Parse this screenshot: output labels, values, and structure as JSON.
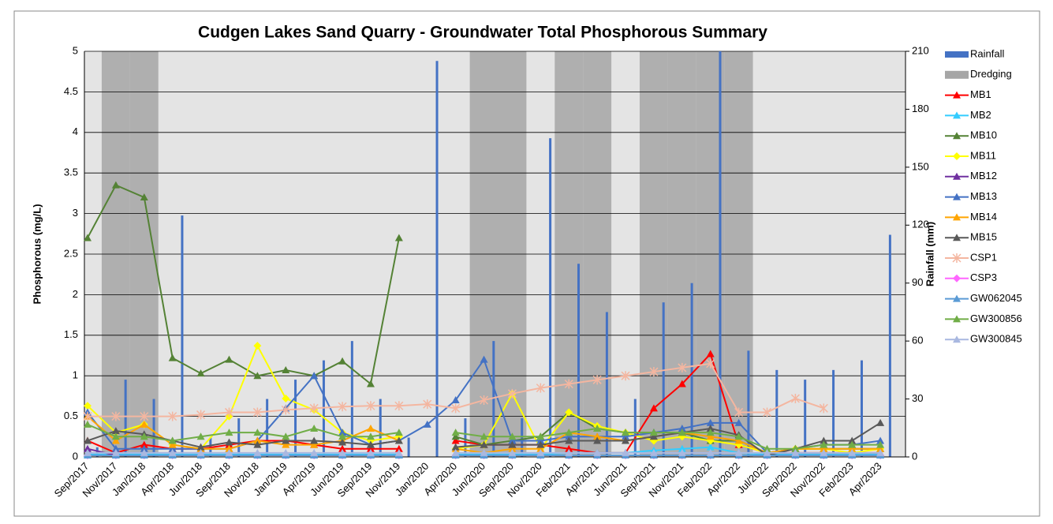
{
  "chart_data": {
    "type": "line",
    "title": "Cudgen Lakes Sand Quarry - Groundwater Total Phosphorous Summary",
    "y_label": "Phosphorous (mg/L)",
    "y2_label": "Rainfall (mm)",
    "categories": [
      "Sep/2017",
      "Nov/2017",
      "Jan/2018",
      "Apr/2018",
      "Jun/2018",
      "Sep/2018",
      "Nov/2018",
      "Jan/2019",
      "Apr/2019",
      "Jun/2019",
      "Sep/2019",
      "Nov/2019",
      "Jan/2020",
      "Apr/2020",
      "Jun/2020",
      "Sep/2020",
      "Nov/2020",
      "Feb/2021",
      "Apr/2021",
      "Jun/2021",
      "Sep/2021",
      "Nov/2021",
      "Feb/2022",
      "Apr/2022",
      "Jul/2022",
      "Sep/2022",
      "Nov/2022",
      "Feb/2023",
      "Apr/2023"
    ],
    "ylim": [
      0,
      5
    ],
    "yticks": [
      0,
      0.5,
      1,
      1.5,
      2,
      2.5,
      3,
      3.5,
      4,
      4.5,
      5
    ],
    "y2lim": [
      0,
      210
    ],
    "y2ticks": [
      0,
      30,
      60,
      90,
      120,
      150,
      180,
      210
    ],
    "grid": true,
    "legend": "right",
    "series": [
      {
        "name": "Rainfall",
        "type": "bar",
        "axis": "y2",
        "color": "#4472c4",
        "values": [
          5,
          40,
          30,
          125,
          10,
          20,
          30,
          40,
          50,
          60,
          30,
          10,
          205,
          20,
          60,
          20,
          165,
          100,
          75,
          30,
          80,
          90,
          210,
          55,
          45,
          40,
          45,
          50,
          115
        ]
      },
      {
        "name": "Dredging",
        "type": "band",
        "axis": "y2",
        "color": "#a6a6a6",
        "values": [
          null,
          210,
          210,
          null,
          null,
          null,
          null,
          null,
          null,
          null,
          null,
          null,
          null,
          null,
          210,
          210,
          null,
          210,
          210,
          null,
          210,
          210,
          210,
          210,
          null,
          null,
          null,
          null,
          null
        ]
      },
      {
        "name": "MB1",
        "type": "line",
        "color": "#ff0000",
        "marker": "triangle",
        "values": [
          0.2,
          0.05,
          0.15,
          0.1,
          0.1,
          0.15,
          0.2,
          0.2,
          0.15,
          0.1,
          0.1,
          0.1,
          null,
          0.2,
          0.15,
          0.15,
          0.15,
          0.1,
          0.05,
          0.05,
          0.6,
          0.9,
          1.27,
          0.15,
          0.05,
          0.05,
          0.05,
          0.05,
          0.05
        ]
      },
      {
        "name": "MB2",
        "type": "line",
        "color": "#33ccff",
        "marker": "triangle",
        "values": [
          0.03,
          0.03,
          0.03,
          0.03,
          0.03,
          0.03,
          0.03,
          0.03,
          0.03,
          0.03,
          0.03,
          0.03,
          null,
          0.03,
          0.03,
          0.03,
          0.03,
          0.05,
          0.05,
          0.05,
          0.08,
          0.1,
          0.12,
          0.05,
          0.03,
          0.03,
          0.03,
          0.03,
          0.03
        ]
      },
      {
        "name": "MB10",
        "type": "line",
        "color": "#548235",
        "marker": "triangle",
        "values": [
          2.7,
          3.35,
          3.2,
          1.22,
          1.03,
          1.2,
          1.0,
          1.07,
          1.0,
          1.18,
          0.9,
          2.7,
          null,
          0.25,
          0.15,
          0.2,
          0.25,
          0.55,
          0.35,
          0.3,
          0.3,
          0.3,
          0.2,
          0.2,
          0.05,
          0.1,
          0.1,
          0.1,
          0.1
        ]
      },
      {
        "name": "MB11",
        "type": "line",
        "color": "#ffff00",
        "marker": "diamond",
        "values": [
          0.63,
          0.3,
          0.4,
          0.15,
          0.1,
          0.5,
          1.37,
          0.72,
          0.58,
          0.3,
          0.2,
          0.25,
          null,
          0.1,
          0.15,
          0.78,
          0.1,
          0.55,
          0.38,
          0.3,
          0.2,
          0.25,
          0.2,
          0.15,
          0.05,
          0.1,
          0.1,
          0.05,
          0.1
        ]
      },
      {
        "name": "MB12",
        "type": "line",
        "color": "#7030a0",
        "marker": "triangle",
        "values": [
          0.1,
          0.02,
          0.02,
          0.02,
          0.02,
          0.02,
          0.02,
          0.02,
          0.02,
          0.02,
          0.02,
          0.02,
          null,
          0.02,
          0.02,
          0.02,
          0.02,
          0.02,
          0.02,
          0.02,
          0.02,
          0.02,
          0.02,
          0.02,
          0.02,
          0.02,
          0.02,
          0.02,
          0.02
        ]
      },
      {
        "name": "MB13",
        "type": "line",
        "color": "#4472c4",
        "marker": "triangle",
        "values": [
          0.55,
          0.1,
          0.1,
          0.1,
          0.1,
          0.1,
          0.2,
          0.6,
          1.0,
          0.3,
          0.15,
          0.2,
          0.4,
          0.7,
          1.2,
          0.2,
          0.2,
          0.25,
          0.25,
          0.25,
          0.3,
          0.35,
          0.42,
          0.42,
          0.05,
          0.1,
          0.15,
          0.15,
          0.2
        ]
      },
      {
        "name": "MB14",
        "type": "line",
        "color": "#ffa500",
        "marker": "triangle",
        "values": [
          0.5,
          0.2,
          0.4,
          0.15,
          0.1,
          0.1,
          0.2,
          0.15,
          0.15,
          0.2,
          0.35,
          0.2,
          null,
          0.1,
          0.05,
          0.1,
          0.1,
          0.3,
          0.25,
          0.2,
          0.25,
          0.3,
          0.25,
          0.2,
          0.05,
          0.1,
          0.1,
          0.1,
          0.1
        ]
      },
      {
        "name": "MB15",
        "type": "line",
        "color": "#595959",
        "marker": "triangle",
        "values": [
          0.2,
          0.32,
          0.28,
          0.2,
          0.12,
          0.18,
          0.15,
          0.2,
          0.2,
          0.18,
          0.15,
          0.2,
          null,
          0.12,
          0.15,
          0.15,
          0.15,
          0.2,
          0.2,
          0.2,
          0.25,
          0.3,
          0.35,
          0.27,
          0.02,
          0.1,
          0.2,
          0.2,
          0.42
        ]
      },
      {
        "name": "CSP1",
        "type": "line",
        "color": "#f4b6a0",
        "marker": "star",
        "values": [
          0.5,
          0.5,
          0.5,
          0.5,
          0.52,
          0.55,
          0.55,
          0.58,
          0.6,
          0.62,
          0.63,
          0.63,
          0.65,
          0.6,
          0.7,
          0.78,
          0.85,
          0.9,
          0.95,
          1.0,
          1.05,
          1.1,
          1.15,
          0.55,
          0.55,
          0.72,
          0.6,
          null,
          null
        ]
      },
      {
        "name": "CSP3",
        "type": "line",
        "color": "#ff66ff",
        "marker": "diamond",
        "values": [
          0.02,
          0.02,
          0.02,
          0.02,
          0.02,
          0.02,
          0.02,
          0.02,
          0.02,
          0.02,
          0.02,
          0.02,
          null,
          0.02,
          0.02,
          0.02,
          0.02,
          0.02,
          0.02,
          0.02,
          0.02,
          0.02,
          0.02,
          0.02,
          0.02,
          0.02,
          0.02,
          0.02,
          0.02
        ]
      },
      {
        "name": "GW062045",
        "type": "line",
        "color": "#5b9bd5",
        "marker": "triangle",
        "values": [
          0.02,
          0.02,
          0.02,
          0.02,
          0.02,
          0.02,
          0.02,
          0.02,
          0.02,
          0.02,
          0.02,
          0.02,
          null,
          0.02,
          0.02,
          0.02,
          0.02,
          0.02,
          0.02,
          0.02,
          0.02,
          0.02,
          0.02,
          0.02,
          0.02,
          0.02,
          0.02,
          0.02,
          0.02
        ]
      },
      {
        "name": "GW300856",
        "type": "line",
        "color": "#70ad47",
        "marker": "triangle",
        "values": [
          0.4,
          0.25,
          0.25,
          0.2,
          0.25,
          0.3,
          0.3,
          0.25,
          0.35,
          0.25,
          0.25,
          0.3,
          null,
          0.3,
          0.25,
          0.25,
          0.25,
          0.3,
          0.35,
          0.3,
          0.3,
          0.3,
          0.3,
          0.25,
          0.1,
          0.1,
          0.15,
          0.15,
          0.15
        ]
      },
      {
        "name": "GW300845",
        "type": "line",
        "color": "#a9b8e0",
        "marker": "triangle",
        "values": [
          0.05,
          0.05,
          0.05,
          0.05,
          0.05,
          0.05,
          0.05,
          0.05,
          0.05,
          0.05,
          0.05,
          0.05,
          null,
          0.05,
          0.05,
          0.05,
          0.05,
          0.05,
          0.05,
          0.05,
          0.05,
          0.05,
          0.05,
          0.05,
          0.05,
          0.05,
          0.05,
          0.05,
          0.05
        ]
      }
    ]
  }
}
